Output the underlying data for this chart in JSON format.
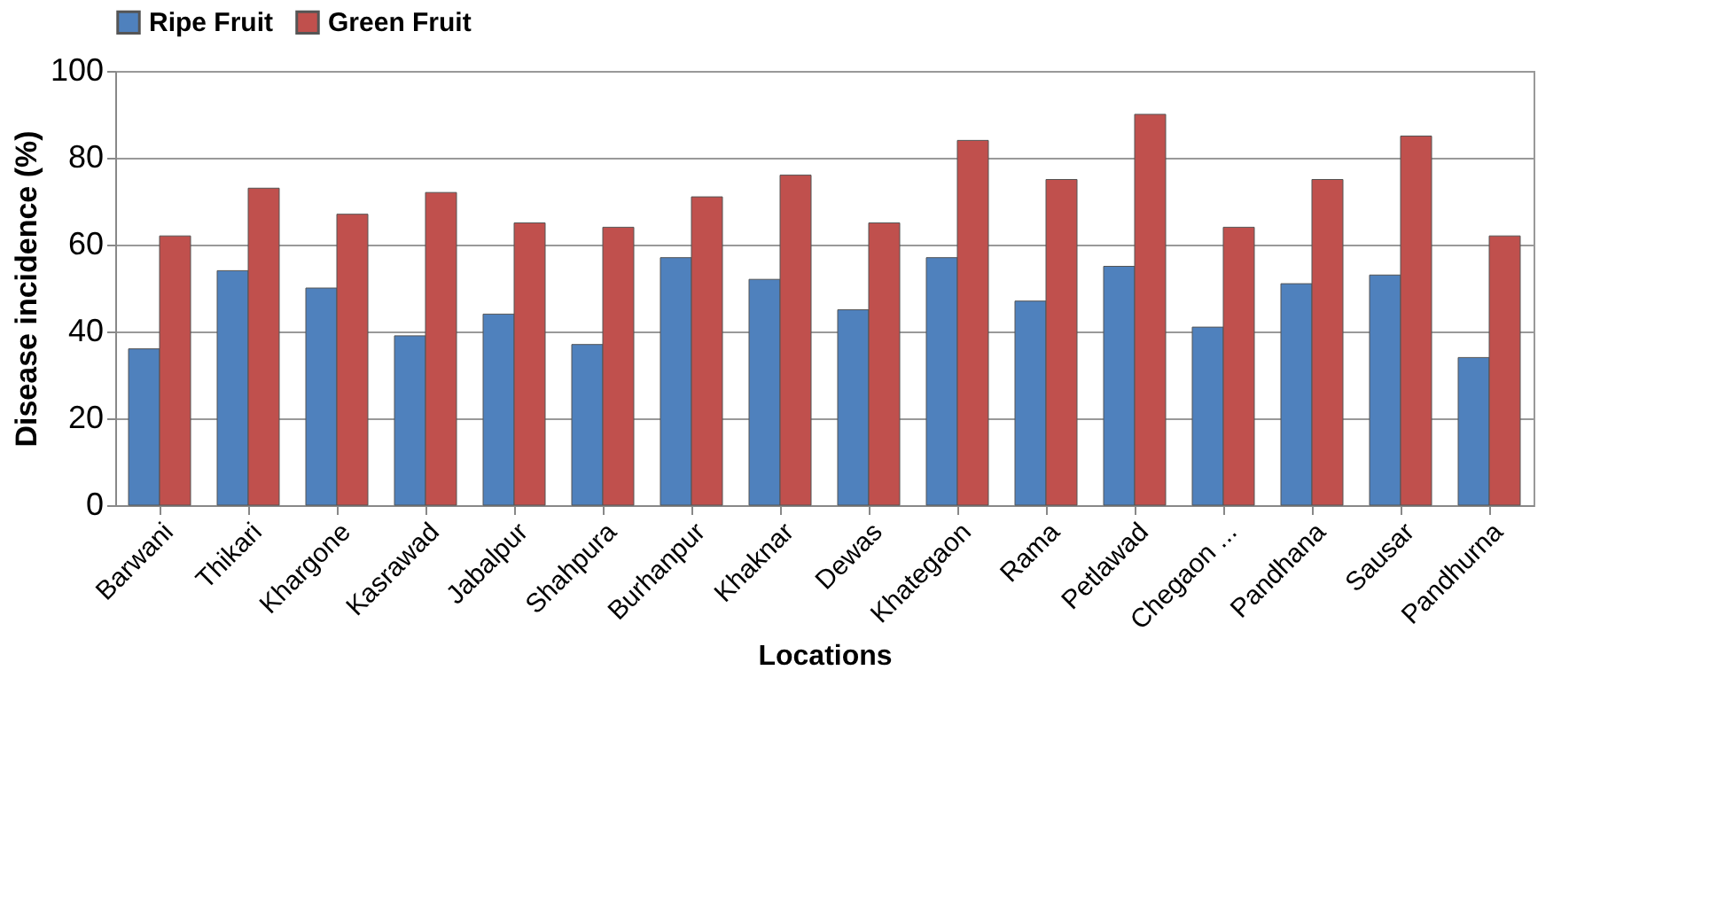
{
  "chart_data": {
    "type": "bar",
    "xlabel": "Locations",
    "ylabel": "Disease incidence (%)",
    "categories": [
      "Barwani",
      "Thikari",
      "Khargone",
      "Kasrawad",
      "Jabalpur",
      "Shahpura",
      "Burhanpur",
      "Khaknar",
      "Dewas",
      "Khategaon",
      "Rama",
      "Petlawad",
      "Chegaon ...",
      "Pandhana",
      "Sausar",
      "Pandhurna"
    ],
    "series": [
      {
        "name": "Ripe Fruit",
        "color": "#4f81bd",
        "values": [
          36,
          54,
          50,
          39,
          44,
          37,
          57,
          52,
          45,
          57,
          47,
          55,
          41,
          51,
          53,
          34
        ]
      },
      {
        "name": "Green Fruit",
        "color": "#c0504d",
        "values": [
          62,
          73,
          67,
          72,
          65,
          64,
          71,
          76,
          65,
          84,
          75,
          90,
          64,
          75,
          85,
          62
        ]
      }
    ],
    "ylim": [
      0,
      100
    ],
    "yticks": [
      0,
      20,
      40,
      60,
      80,
      100
    ],
    "grid": "y",
    "legend": "top"
  }
}
